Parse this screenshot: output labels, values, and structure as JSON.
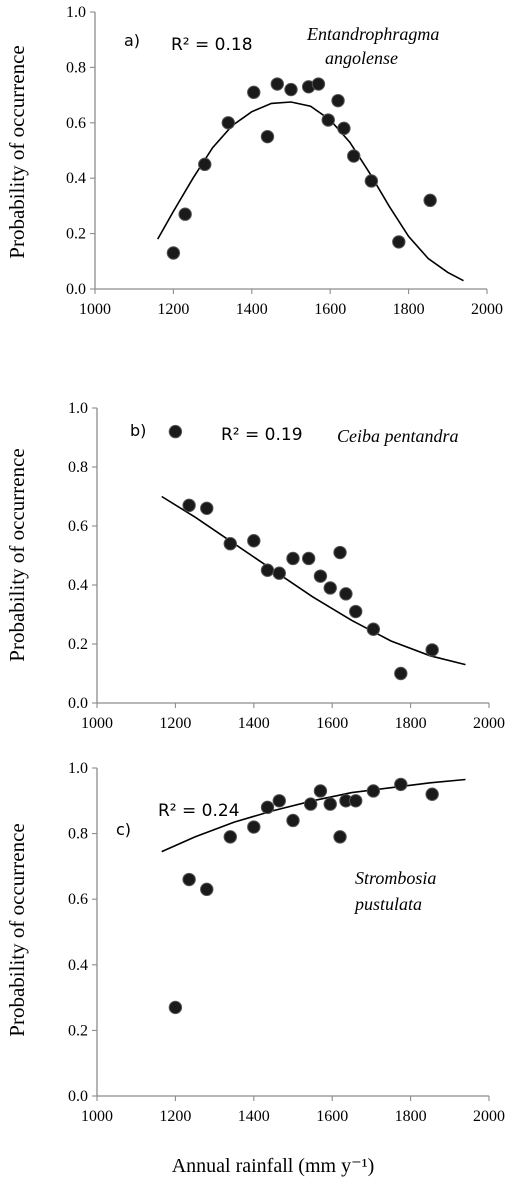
{
  "chart_data": [
    {
      "type": "scatter",
      "panel_label": "a)",
      "r2_text": "R² = 0.18",
      "species": [
        "Entandrophragma",
        "angolense"
      ],
      "ylabel": "Probability of occurrence",
      "xlim": [
        1000,
        2000
      ],
      "ylim": [
        0,
        1
      ],
      "xticks": [
        "1000",
        "1200",
        "1400",
        "1600",
        "1800",
        "2000"
      ],
      "yticks": [
        "0.0",
        "0.2",
        "0.4",
        "0.6",
        "0.8",
        "1.0"
      ],
      "points": [
        {
          "x": 1200,
          "y": 0.13
        },
        {
          "x": 1230,
          "y": 0.27
        },
        {
          "x": 1280,
          "y": 0.45
        },
        {
          "x": 1340,
          "y": 0.6
        },
        {
          "x": 1405,
          "y": 0.71
        },
        {
          "x": 1440,
          "y": 0.55
        },
        {
          "x": 1465,
          "y": 0.74
        },
        {
          "x": 1500,
          "y": 0.72
        },
        {
          "x": 1545,
          "y": 0.73
        },
        {
          "x": 1570,
          "y": 0.74
        },
        {
          "x": 1595,
          "y": 0.61
        },
        {
          "x": 1620,
          "y": 0.68
        },
        {
          "x": 1635,
          "y": 0.58
        },
        {
          "x": 1660,
          "y": 0.48
        },
        {
          "x": 1705,
          "y": 0.39
        },
        {
          "x": 1775,
          "y": 0.17
        },
        {
          "x": 1855,
          "y": 0.32
        }
      ],
      "fit": [
        {
          "x": 1160,
          "y": 0.18
        },
        {
          "x": 1200,
          "y": 0.28
        },
        {
          "x": 1250,
          "y": 0.4
        },
        {
          "x": 1300,
          "y": 0.51
        },
        {
          "x": 1350,
          "y": 0.59
        },
        {
          "x": 1400,
          "y": 0.64
        },
        {
          "x": 1450,
          "y": 0.67
        },
        {
          "x": 1500,
          "y": 0.675
        },
        {
          "x": 1550,
          "y": 0.66
        },
        {
          "x": 1600,
          "y": 0.61
        },
        {
          "x": 1650,
          "y": 0.53
        },
        {
          "x": 1700,
          "y": 0.42
        },
        {
          "x": 1750,
          "y": 0.3
        },
        {
          "x": 1800,
          "y": 0.19
        },
        {
          "x": 1850,
          "y": 0.11
        },
        {
          "x": 1900,
          "y": 0.06
        },
        {
          "x": 1940,
          "y": 0.03
        }
      ]
    },
    {
      "type": "scatter",
      "panel_label": "b)",
      "r2_text": "R² = 0.19",
      "species": [
        "Ceiba pentandra"
      ],
      "ylabel": "Probability of occurrence",
      "xlim": [
        1000,
        2000
      ],
      "ylim": [
        0,
        1
      ],
      "xticks": [
        "1000",
        "1200",
        "1400",
        "1600",
        "1800",
        "2000"
      ],
      "yticks": [
        "0.0",
        "0.2",
        "0.4",
        "0.6",
        "0.8",
        "1.0"
      ],
      "points": [
        {
          "x": 1200,
          "y": 0.92
        },
        {
          "x": 1235,
          "y": 0.67
        },
        {
          "x": 1280,
          "y": 0.66
        },
        {
          "x": 1340,
          "y": 0.54
        },
        {
          "x": 1400,
          "y": 0.55
        },
        {
          "x": 1435,
          "y": 0.45
        },
        {
          "x": 1465,
          "y": 0.44
        },
        {
          "x": 1500,
          "y": 0.49
        },
        {
          "x": 1540,
          "y": 0.49
        },
        {
          "x": 1570,
          "y": 0.43
        },
        {
          "x": 1595,
          "y": 0.39
        },
        {
          "x": 1620,
          "y": 0.51
        },
        {
          "x": 1635,
          "y": 0.37
        },
        {
          "x": 1660,
          "y": 0.31
        },
        {
          "x": 1705,
          "y": 0.25
        },
        {
          "x": 1775,
          "y": 0.1
        },
        {
          "x": 1855,
          "y": 0.18
        }
      ],
      "fit": [
        {
          "x": 1165,
          "y": 0.7
        },
        {
          "x": 1250,
          "y": 0.63
        },
        {
          "x": 1350,
          "y": 0.54
        },
        {
          "x": 1450,
          "y": 0.45
        },
        {
          "x": 1550,
          "y": 0.36
        },
        {
          "x": 1650,
          "y": 0.28
        },
        {
          "x": 1750,
          "y": 0.21
        },
        {
          "x": 1850,
          "y": 0.16
        },
        {
          "x": 1940,
          "y": 0.13
        }
      ]
    },
    {
      "type": "scatter",
      "panel_label": "c)",
      "r2_text": "R² = 0.24",
      "species": [
        "Strombosia",
        "pustulata"
      ],
      "ylabel": "Probability of occurrence",
      "xlabel": "Annual rainfall (mm y⁻¹)",
      "xlim": [
        1000,
        2000
      ],
      "ylim": [
        0,
        1
      ],
      "xticks": [
        "1000",
        "1200",
        "1400",
        "1600",
        "1800",
        "2000"
      ],
      "yticks": [
        "0.0",
        "0.2",
        "0.4",
        "0.6",
        "0.8",
        "1.0"
      ],
      "points": [
        {
          "x": 1200,
          "y": 0.27
        },
        {
          "x": 1235,
          "y": 0.66
        },
        {
          "x": 1280,
          "y": 0.63
        },
        {
          "x": 1340,
          "y": 0.79
        },
        {
          "x": 1400,
          "y": 0.82
        },
        {
          "x": 1435,
          "y": 0.88
        },
        {
          "x": 1465,
          "y": 0.9
        },
        {
          "x": 1500,
          "y": 0.84
        },
        {
          "x": 1545,
          "y": 0.89
        },
        {
          "x": 1570,
          "y": 0.93
        },
        {
          "x": 1595,
          "y": 0.89
        },
        {
          "x": 1620,
          "y": 0.79
        },
        {
          "x": 1635,
          "y": 0.9
        },
        {
          "x": 1660,
          "y": 0.9
        },
        {
          "x": 1705,
          "y": 0.93
        },
        {
          "x": 1775,
          "y": 0.95
        },
        {
          "x": 1855,
          "y": 0.92
        }
      ],
      "fit": [
        {
          "x": 1165,
          "y": 0.745
        },
        {
          "x": 1250,
          "y": 0.79
        },
        {
          "x": 1350,
          "y": 0.835
        },
        {
          "x": 1450,
          "y": 0.87
        },
        {
          "x": 1550,
          "y": 0.9
        },
        {
          "x": 1650,
          "y": 0.925
        },
        {
          "x": 1750,
          "y": 0.94
        },
        {
          "x": 1850,
          "y": 0.955
        },
        {
          "x": 1940,
          "y": 0.965
        }
      ]
    }
  ]
}
